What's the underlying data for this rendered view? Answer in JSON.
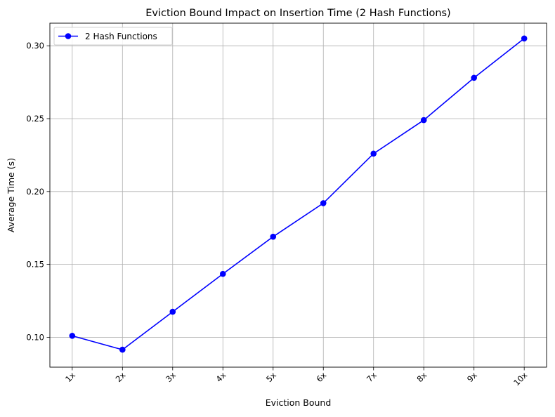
{
  "chart_data": {
    "type": "line",
    "title": "Eviction Bound Impact on Insertion Time (2 Hash Functions)",
    "xlabel": "Eviction Bound",
    "ylabel": "Average Time (s)",
    "categories": [
      "1x",
      "2x",
      "3x",
      "4x",
      "5x",
      "6x",
      "7x",
      "8x",
      "9x",
      "10x"
    ],
    "series": [
      {
        "name": "2 Hash Functions",
        "color": "#0000ff",
        "marker": "circle",
        "values": [
          0.101,
          0.0915,
          0.1175,
          0.1435,
          0.169,
          0.192,
          0.226,
          0.249,
          0.278,
          0.305
        ]
      }
    ],
    "ylim": [
      0.0795,
      0.3155
    ],
    "yticks": [
      0.1,
      0.15,
      0.2,
      0.25,
      0.3
    ],
    "ytick_labels": [
      "0.10",
      "0.15",
      "0.20",
      "0.25",
      "0.30"
    ],
    "grid": true,
    "legend_position": "top-left",
    "x_tick_rotation": 45
  }
}
